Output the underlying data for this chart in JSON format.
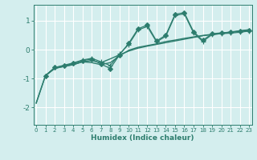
{
  "xlabel": "Humidex (Indice chaleur)",
  "background_color": "#d4eeee",
  "grid_color": "#b8d8d8",
  "line_color": "#2d7d6e",
  "xticks": [
    0,
    1,
    2,
    3,
    4,
    5,
    6,
    7,
    8,
    9,
    10,
    11,
    12,
    13,
    14,
    15,
    16,
    17,
    18,
    19,
    20,
    21,
    22,
    23
  ],
  "yticks": [
    -2,
    -1,
    0,
    1
  ],
  "ylim": [
    -2.6,
    1.55
  ],
  "xlim": [
    -0.3,
    23.3
  ],
  "series": [
    {
      "x": [
        0,
        1,
        2,
        3,
        4,
        5,
        6,
        7,
        8,
        9,
        10,
        11,
        12,
        13,
        14,
        15,
        16,
        17,
        18,
        19,
        20,
        21,
        22,
        23
      ],
      "y": [
        -1.85,
        -0.9,
        -0.65,
        -0.58,
        -0.52,
        -0.42,
        -0.38,
        -0.45,
        -0.32,
        -0.18,
        -0.05,
        0.05,
        0.12,
        0.18,
        0.24,
        0.3,
        0.36,
        0.42,
        0.48,
        0.52,
        0.56,
        0.6,
        0.64,
        0.68
      ],
      "marker": null,
      "linestyle": "-",
      "lw": 1.0
    },
    {
      "x": [
        0,
        1,
        2,
        3,
        4,
        5,
        6,
        7,
        8,
        9,
        10,
        11,
        12,
        13,
        14,
        15,
        16,
        17,
        18,
        19,
        20,
        21,
        22,
        23
      ],
      "y": [
        -1.85,
        -0.9,
        -0.65,
        -0.58,
        -0.52,
        -0.42,
        -0.45,
        -0.52,
        -0.45,
        -0.22,
        -0.02,
        0.08,
        0.14,
        0.2,
        0.28,
        0.33,
        0.39,
        0.44,
        0.49,
        0.53,
        0.57,
        0.61,
        0.65,
        0.69
      ],
      "marker": null,
      "linestyle": "-",
      "lw": 1.0
    },
    {
      "x": [
        1,
        2,
        3,
        4,
        5,
        6,
        7,
        8,
        9,
        10,
        11,
        12,
        13,
        14,
        15,
        16,
        17,
        18,
        19,
        20,
        21,
        22,
        23
      ],
      "y": [
        -0.9,
        -0.62,
        -0.56,
        -0.48,
        -0.38,
        -0.33,
        -0.5,
        -0.65,
        -0.18,
        0.22,
        0.72,
        0.85,
        0.3,
        0.5,
        1.22,
        1.28,
        0.62,
        0.32,
        0.55,
        0.58,
        0.6,
        0.63,
        0.67
      ],
      "marker": "D",
      "linestyle": "-",
      "lw": 0.9
    },
    {
      "x": [
        1,
        2,
        3,
        4,
        5,
        6,
        7,
        8,
        9,
        10,
        11,
        12,
        13,
        14,
        15,
        16,
        17,
        18,
        19,
        20,
        21,
        22,
        23
      ],
      "y": [
        -0.9,
        -0.62,
        -0.54,
        -0.46,
        -0.36,
        -0.3,
        -0.42,
        -0.55,
        -0.15,
        0.18,
        0.68,
        0.8,
        0.27,
        0.46,
        1.18,
        1.24,
        0.58,
        0.28,
        0.52,
        0.55,
        0.57,
        0.6,
        0.64
      ],
      "marker": "+",
      "linestyle": "-",
      "lw": 0.9
    }
  ]
}
